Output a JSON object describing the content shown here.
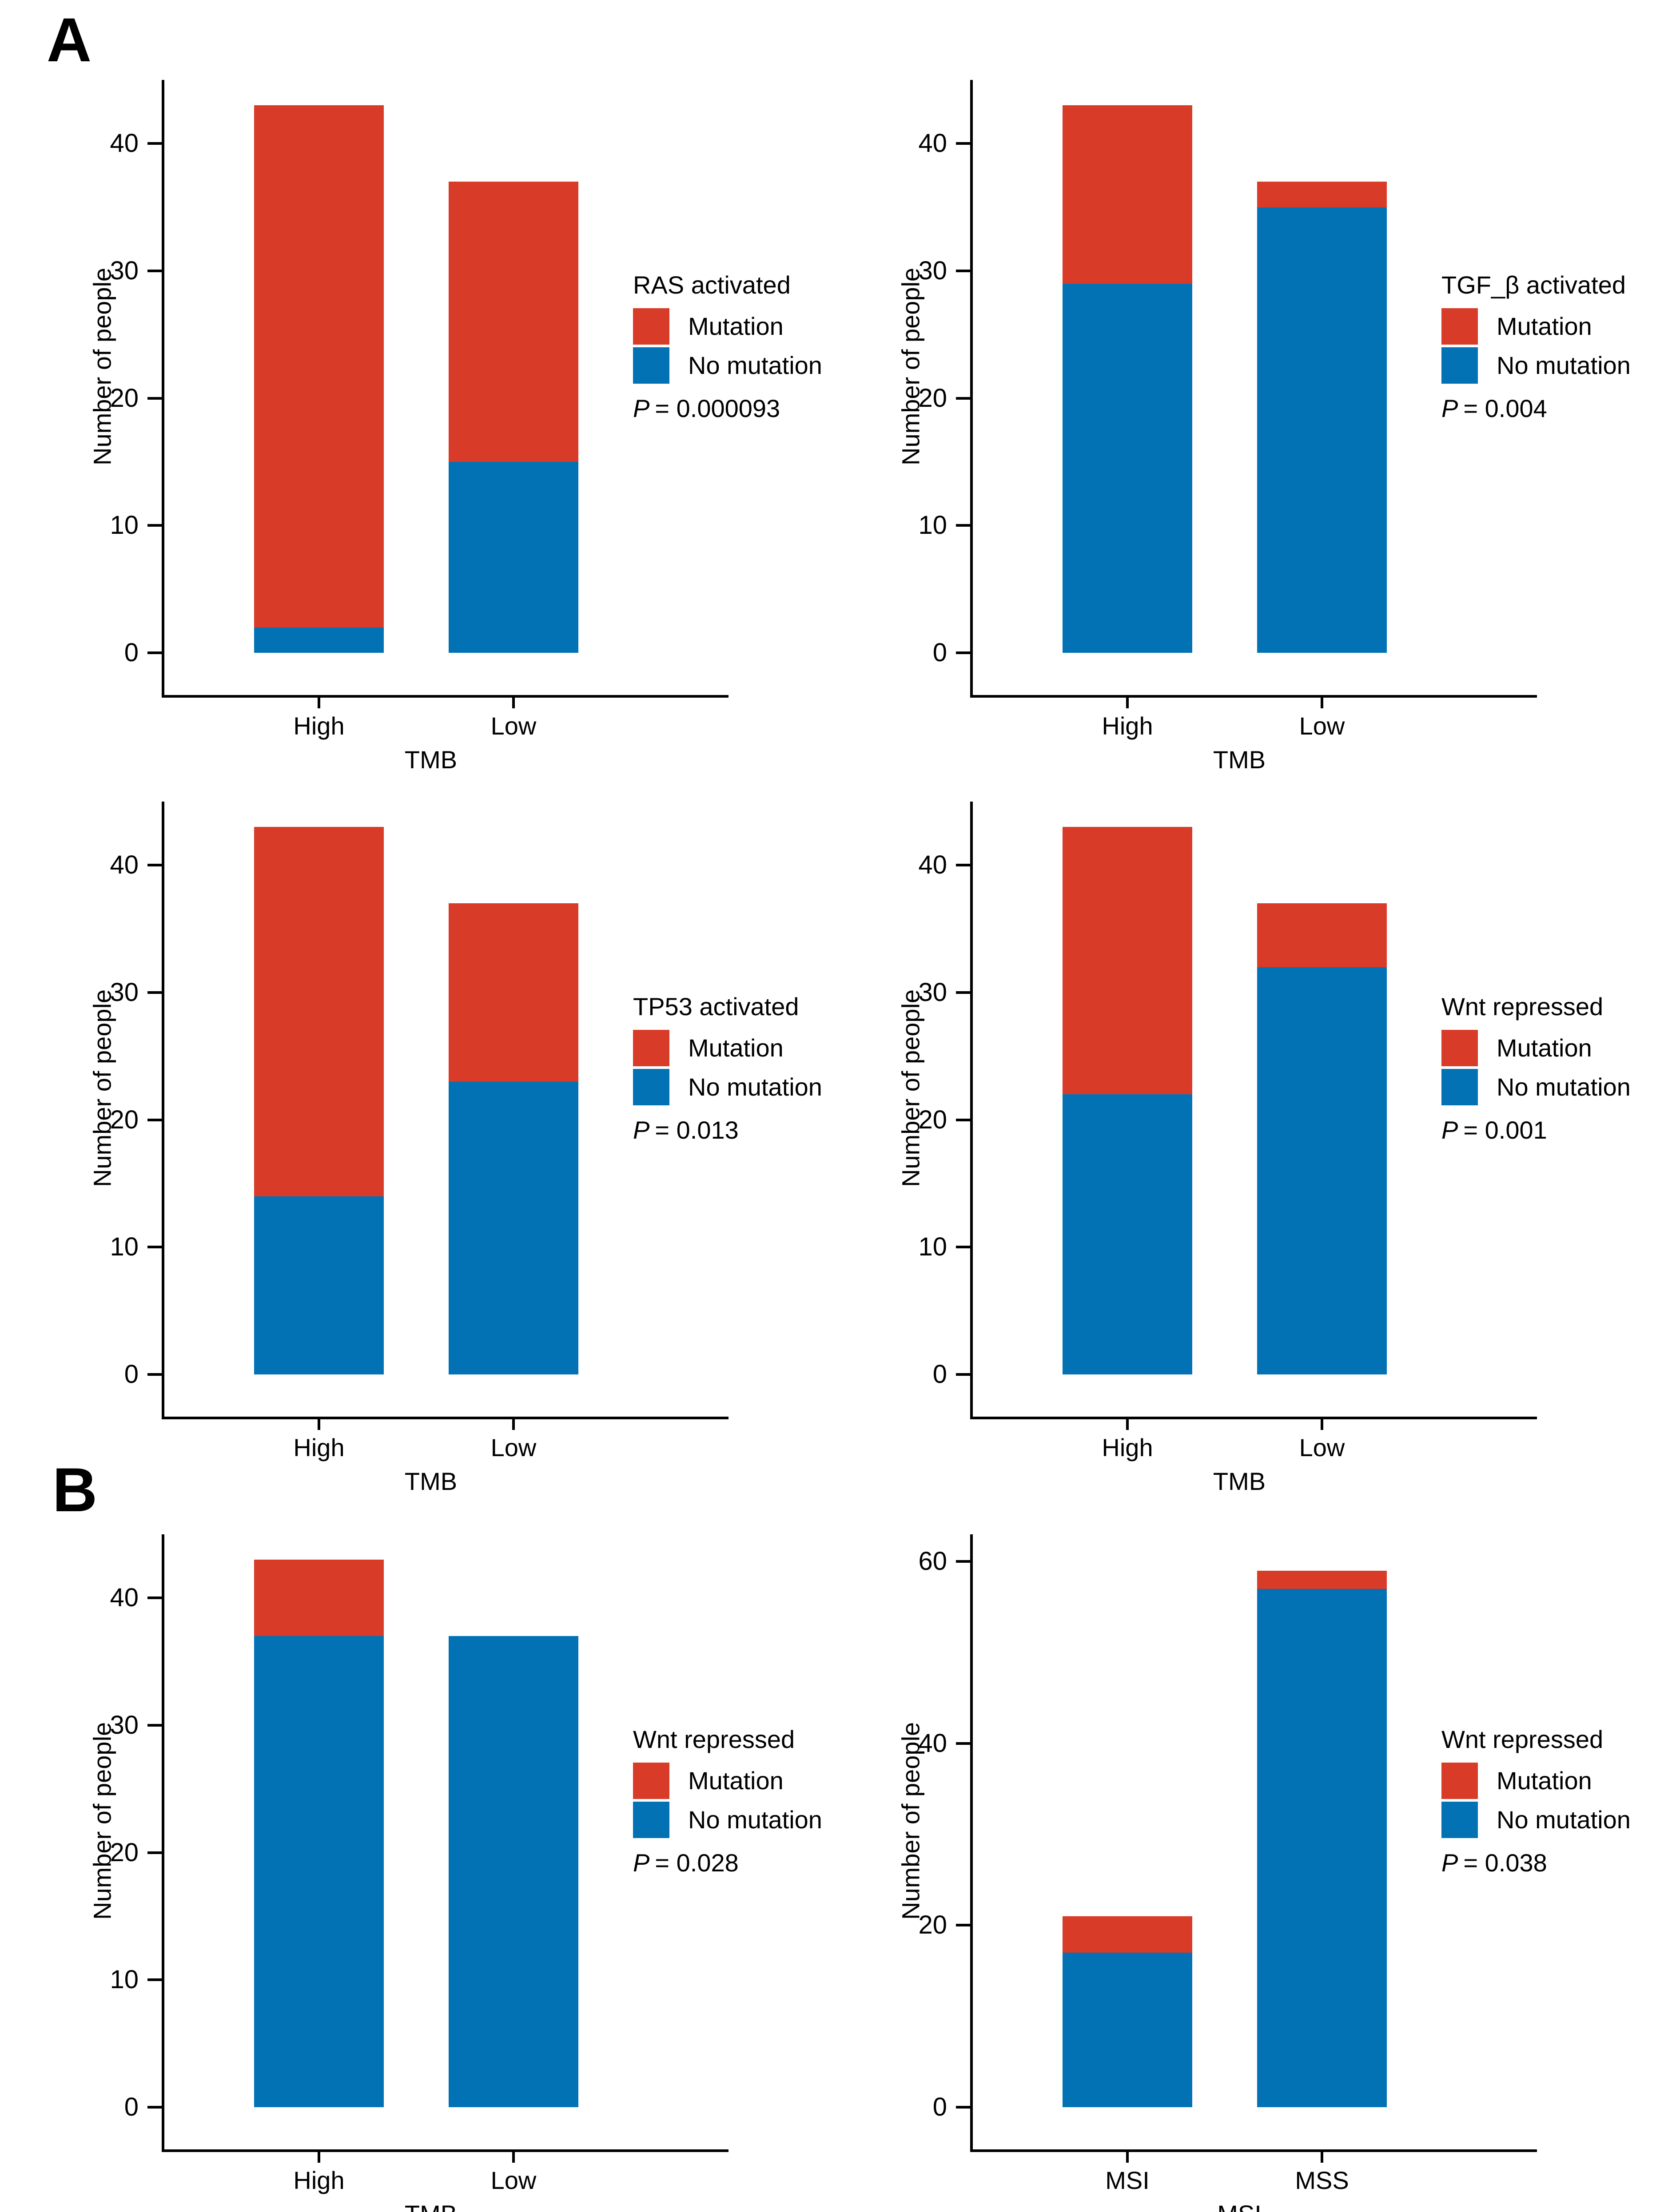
{
  "panels": [
    {
      "label": "A"
    },
    {
      "label": "B"
    }
  ],
  "shared": {
    "ylabel": "Number of people",
    "legend": {
      "mutation": "Mutation",
      "no_mutation": "No mutation"
    },
    "colors": {
      "mutation": "#D83B28",
      "no_mutation": "#0272B5",
      "axis": "#000000"
    }
  },
  "chart_data": [
    {
      "type": "bar",
      "stacked": true,
      "panel": "A",
      "legend_title": "RAS activated",
      "p_symbol": "P",
      "p_text": "= 0.000093",
      "xlabel": "TMB",
      "ylabel": "Number of people",
      "categories": [
        "High",
        "Low"
      ],
      "yticks": [
        0,
        10,
        20,
        30,
        40
      ],
      "ylim": [
        0,
        45
      ],
      "series": [
        {
          "name": "Mutation",
          "color_key": "mutation",
          "values": [
            41,
            22
          ]
        },
        {
          "name": "No mutation",
          "color_key": "no_mutation",
          "values": [
            2,
            15
          ]
        }
      ],
      "totals": [
        43,
        37
      ]
    },
    {
      "type": "bar",
      "stacked": true,
      "panel": "A",
      "legend_title": "TGF_β activated",
      "p_symbol": "P",
      "p_text": "= 0.004",
      "xlabel": "TMB",
      "ylabel": "Number of people",
      "categories": [
        "High",
        "Low"
      ],
      "yticks": [
        0,
        10,
        20,
        30,
        40
      ],
      "ylim": [
        0,
        45
      ],
      "series": [
        {
          "name": "Mutation",
          "color_key": "mutation",
          "values": [
            14,
            2
          ]
        },
        {
          "name": "No mutation",
          "color_key": "no_mutation",
          "values": [
            29,
            35
          ]
        }
      ],
      "totals": [
        43,
        37
      ]
    },
    {
      "type": "bar",
      "stacked": true,
      "panel": "A",
      "legend_title": "TP53 activated",
      "p_symbol": "P",
      "p_text": "= 0.013",
      "xlabel": "TMB",
      "ylabel": "Number of people",
      "categories": [
        "High",
        "Low"
      ],
      "yticks": [
        0,
        10,
        20,
        30,
        40
      ],
      "ylim": [
        0,
        45
      ],
      "series": [
        {
          "name": "Mutation",
          "color_key": "mutation",
          "values": [
            29,
            14
          ]
        },
        {
          "name": "No mutation",
          "color_key": "no_mutation",
          "values": [
            14,
            23
          ]
        }
      ],
      "totals": [
        43,
        37
      ]
    },
    {
      "type": "bar",
      "stacked": true,
      "panel": "A",
      "legend_title": "Wnt repressed",
      "p_symbol": "P",
      "p_text": "= 0.001",
      "xlabel": "TMB",
      "ylabel": "Number of people",
      "categories": [
        "High",
        "Low"
      ],
      "yticks": [
        0,
        10,
        20,
        30,
        40
      ],
      "ylim": [
        0,
        45
      ],
      "series": [
        {
          "name": "Mutation",
          "color_key": "mutation",
          "values": [
            21,
            5
          ]
        },
        {
          "name": "No mutation",
          "color_key": "no_mutation",
          "values": [
            22,
            32
          ]
        }
      ],
      "totals": [
        43,
        37
      ]
    },
    {
      "type": "bar",
      "stacked": true,
      "panel": "B",
      "legend_title": "Wnt repressed",
      "p_symbol": "P",
      "p_text": "= 0.028",
      "xlabel": "TMB",
      "ylabel": "Number of people",
      "categories": [
        "High",
        "Low"
      ],
      "yticks": [
        0,
        10,
        20,
        30,
        40
      ],
      "ylim": [
        0,
        45
      ],
      "series": [
        {
          "name": "Mutation",
          "color_key": "mutation",
          "values": [
            6,
            0
          ]
        },
        {
          "name": "No mutation",
          "color_key": "no_mutation",
          "values": [
            37,
            37
          ]
        }
      ],
      "totals": [
        43,
        37
      ]
    },
    {
      "type": "bar",
      "stacked": true,
      "panel": "B",
      "legend_title": "Wnt repressed",
      "p_symbol": "P",
      "p_text": "= 0.038",
      "xlabel": "MSI",
      "ylabel": "Number of people",
      "categories": [
        "MSI",
        "MSS"
      ],
      "yticks": [
        0,
        20,
        40,
        60
      ],
      "ylim": [
        0,
        63
      ],
      "series": [
        {
          "name": "Mutation",
          "color_key": "mutation",
          "values": [
            4,
            2
          ]
        },
        {
          "name": "No mutation",
          "color_key": "no_mutation",
          "values": [
            17,
            57
          ]
        }
      ],
      "totals": [
        21,
        59
      ]
    }
  ]
}
